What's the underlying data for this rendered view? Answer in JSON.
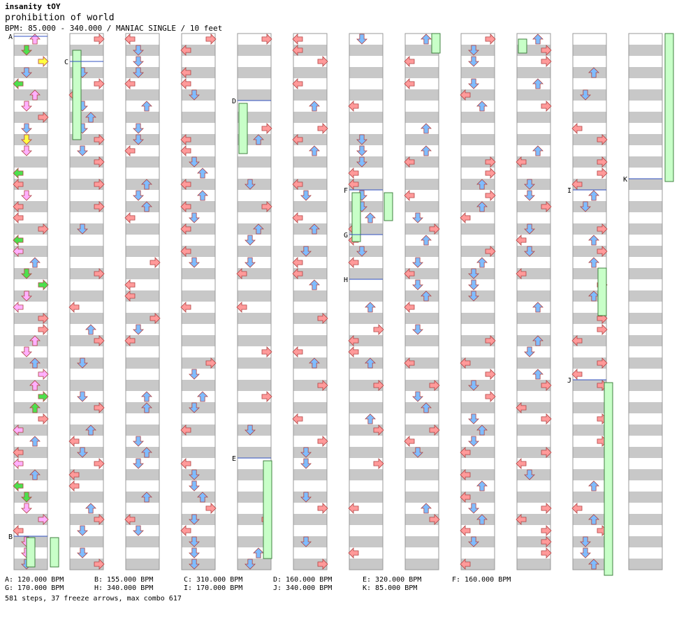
{
  "header": {
    "artist": "insanity tOY",
    "title": "prohibition of world",
    "bpm_line": "BPM: 85.000 - 340.000 / MANIAC SINGLE / 10 feet"
  },
  "colors": {
    "stripe_gray": "#c8c8c8",
    "red_arrow": "#ff9a9a",
    "blue_arrow": "#7fbcff",
    "pink_arrow": "#ffb0ff",
    "green_arrow": "#4de04d",
    "yellow_arrow": "#ffff40",
    "freeze_body": "#c8ffc8",
    "bpm_line": "#3050c0"
  },
  "bpm_changes": [
    {
      "label": "A",
      "bpm_text": "A: 120.000 BPM"
    },
    {
      "label": "B",
      "bpm_text": "B: 155.000 BPM"
    },
    {
      "label": "C",
      "bpm_text": "C: 310.000 BPM"
    },
    {
      "label": "D",
      "bpm_text": "D: 160.000 BPM"
    },
    {
      "label": "E",
      "bpm_text": "E: 320.000 BPM"
    },
    {
      "label": "F",
      "bpm_text": "F: 160.000 BPM"
    },
    {
      "label": "G",
      "bpm_text": "G: 170.000 BPM"
    },
    {
      "label": "H",
      "bpm_text": "H: 340.000 BPM"
    },
    {
      "label": "I",
      "bpm_text": "I: 170.000 BPM"
    },
    {
      "label": "J",
      "bpm_text": "J: 340.000 BPM"
    },
    {
      "label": "K",
      "bpm_text": "K: 85.000 BPM"
    }
  ],
  "summary": "581 steps, 37 freeze arrows, max combo 617",
  "chart_data": {
    "type": "step_chart",
    "mode": "MANIAC SINGLE",
    "difficulty_feet": 10,
    "bpm_range": [
      85,
      340
    ],
    "columns": 12,
    "steps": 581,
    "freeze_arrows": 37,
    "max_combo": 617
  }
}
